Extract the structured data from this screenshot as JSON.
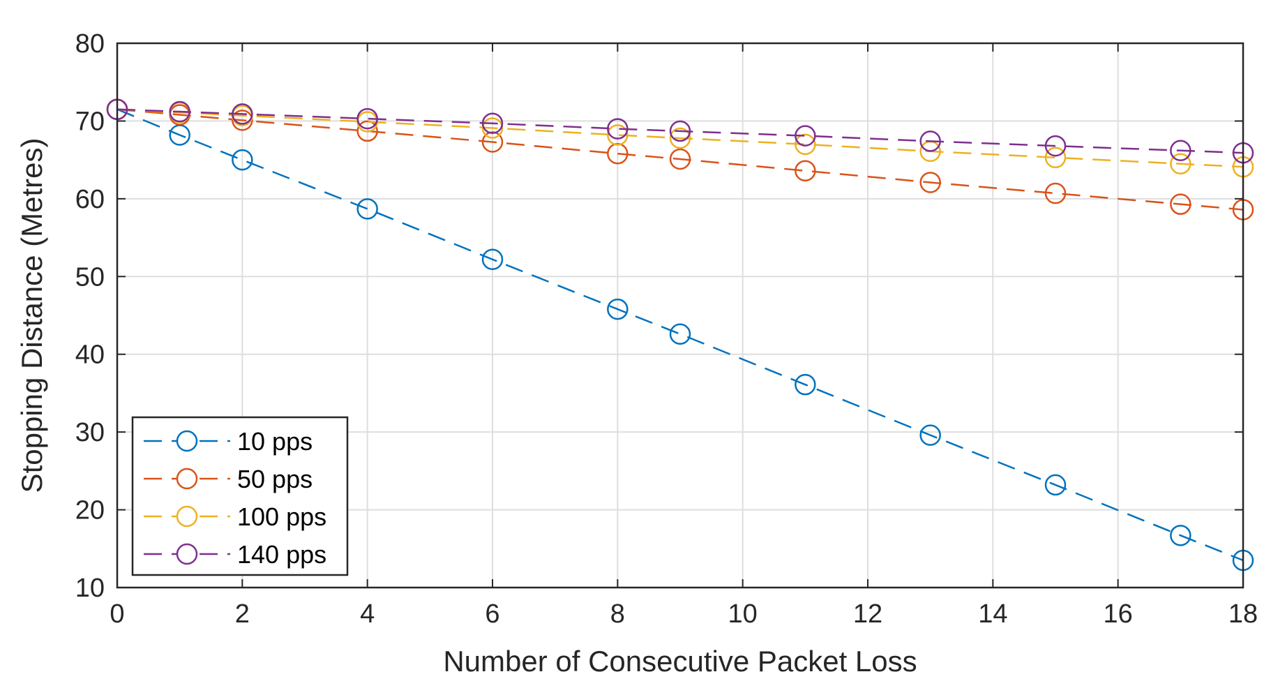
{
  "chart_data": {
    "type": "line",
    "xlabel": "Number of Consecutive Packet Loss",
    "ylabel": "Stopping Distance (Metres)",
    "xlim": [
      0,
      18
    ],
    "ylim": [
      10,
      80
    ],
    "xticks": [
      0,
      2,
      4,
      6,
      8,
      10,
      12,
      14,
      16,
      18
    ],
    "yticks": [
      10,
      20,
      30,
      40,
      50,
      60,
      70,
      80
    ],
    "grid": true,
    "legend_position": "bottom-left",
    "marker": "circle-open",
    "line_style": "dashed",
    "x": [
      0,
      1,
      2,
      4,
      6,
      8,
      9,
      11,
      13,
      15,
      17,
      18
    ],
    "series": [
      {
        "name": "10 pps",
        "color": "#0072BD",
        "values": [
          71.5,
          68.2,
          65.0,
          58.7,
          52.2,
          45.8,
          42.6,
          36.1,
          29.6,
          23.2,
          16.7,
          13.5
        ]
      },
      {
        "name": "50 pps",
        "color": "#D95319",
        "values": [
          71.5,
          70.8,
          70.1,
          68.7,
          67.3,
          65.8,
          65.1,
          63.6,
          62.1,
          60.7,
          59.3,
          58.6
        ]
      },
      {
        "name": "100 pps",
        "color": "#EDB120",
        "values": [
          71.5,
          71.1,
          70.7,
          69.9,
          69.1,
          68.2,
          67.8,
          67.0,
          66.1,
          65.3,
          64.5,
          64.1
        ]
      },
      {
        "name": "140 pps",
        "color": "#7E2F8E",
        "values": [
          71.5,
          71.2,
          70.9,
          70.3,
          69.7,
          69.0,
          68.7,
          68.1,
          67.4,
          66.8,
          66.2,
          65.9
        ]
      }
    ]
  }
}
